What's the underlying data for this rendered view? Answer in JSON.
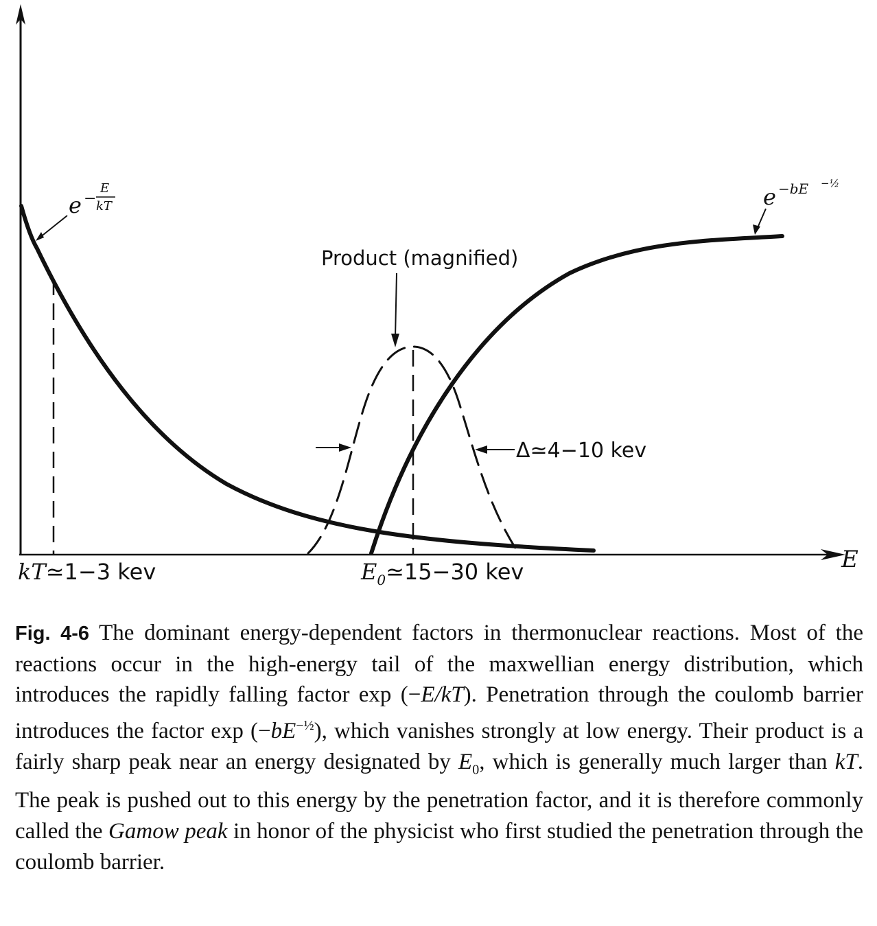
{
  "diagram": {
    "axis_label_e": "E",
    "boltzmann_label": {
      "base": "e",
      "exp_prefix": "−",
      "frac_num": "E",
      "frac_den": "kT"
    },
    "penetration_label": {
      "base": "e",
      "exp": "−bE",
      "exp_pow": "−½"
    },
    "product_label": "Product (magnified)",
    "width_label": "Δ≃4−10 kev",
    "kt_label": {
      "main": "kT",
      "rest": "≃1−3 kev"
    },
    "e0_label": {
      "main": "E",
      "sub": "0",
      "rest": "≃15−30 kev"
    }
  },
  "caption": {
    "fig_label": "Fig. 4-6",
    "p1": "The dominant energy-dependent factors in thermonuclear reactions. Most of the reactions occur in the high-energy tail of the maxwellian energy distribution, which introduces the rapidly falling factor exp (−",
    "p1_it": "E/kT",
    "p2": "). Penetration through the coulomb barrier introduces the factor exp (−",
    "p2_it": "bE",
    "p2_sup": "−½",
    "p3": "), which vanishes strongly at low energy. Their product is a fairly sharp peak near an energy designated by ",
    "p3_it": "E",
    "p3_sub": "0",
    "p4": ", which is generally much larger than ",
    "p4_it": "kT",
    "p5": ". The peak is pushed out to this energy by the penetration factor, and it is therefore commonly called the ",
    "p5_it": "Gamow peak",
    "p6": " in honor of the physicist who first studied the penetration through the coulomb barrier."
  }
}
